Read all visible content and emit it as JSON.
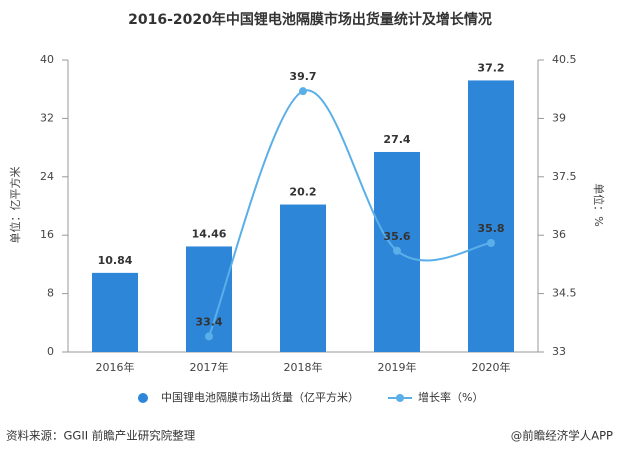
{
  "chart_data": {
    "type": "bar",
    "title": "2016-2020年中国锂电池隔膜市场出货量统计及增长情况",
    "y_label": "单位：亿平方米",
    "y2_label": "单位：%",
    "categories": [
      "2016年",
      "2017年",
      "2018年",
      "2019年",
      "2020年"
    ],
    "series": [
      {
        "name": "中国锂电池隔膜市场出货量（亿平方米）",
        "color": "#2e86d9",
        "values": [
          10.84,
          14.46,
          20.2,
          27.4,
          37.2
        ]
      },
      {
        "name": "增长率（%）",
        "color": "#5aafe8",
        "type": "line",
        "axis": "y2",
        "values": [
          null,
          33.4,
          39.7,
          35.6,
          35.8
        ]
      }
    ],
    "ylim": [
      0,
      40
    ],
    "yticks": [
      0,
      8,
      16,
      24,
      32,
      40
    ],
    "y2lim": [
      33,
      40.5
    ],
    "y2ticks": [
      33,
      34.5,
      36,
      37.5,
      39,
      40.5
    ],
    "source": "资料来源：GGII 前瞻产业研究院整理",
    "credit": "@前瞻经济学人APP"
  }
}
